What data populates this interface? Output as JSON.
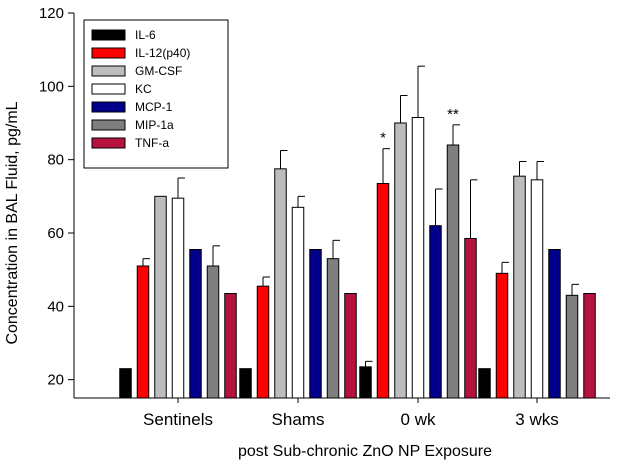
{
  "chart_data": {
    "type": "bar",
    "title": "",
    "xlabel": "post Sub-chronic ZnO NP Exposure",
    "ylabel": "Concentration in BAL Fluid, pg/mL",
    "ylim": [
      15,
      120
    ],
    "yticks": [
      20,
      40,
      60,
      80,
      100,
      120
    ],
    "grid": false,
    "legend_position": "top-left",
    "categories": [
      "Sentinels",
      "Shams",
      "0 wk",
      "3 wks"
    ],
    "series": [
      {
        "name": "IL-6",
        "color": "#000000",
        "values": [
          23,
          23,
          23.5,
          23
        ],
        "errors": [
          0,
          0,
          1.5,
          0
        ]
      },
      {
        "name": "IL-12(p40)",
        "color": "#ff0000",
        "values": [
          51,
          45.5,
          73.5,
          49
        ],
        "errors": [
          2,
          2.5,
          9.5,
          3
        ]
      },
      {
        "name": "GM-CSF",
        "color": "#bdbdbd",
        "values": [
          70,
          77.5,
          90,
          75.5
        ],
        "errors": [
          0,
          5,
          7.5,
          4
        ]
      },
      {
        "name": "KC",
        "color": "#ffffff",
        "values": [
          69.5,
          67,
          91.5,
          74.5
        ],
        "errors": [
          5.5,
          3,
          14,
          5
        ]
      },
      {
        "name": "MCP-1",
        "color": "#00008b",
        "values": [
          55.5,
          55.5,
          62,
          55.5
        ],
        "errors": [
          0,
          0,
          10,
          0
        ]
      },
      {
        "name": "MIP-1a",
        "color": "#7f7f7f",
        "values": [
          51,
          53,
          84,
          43
        ],
        "errors": [
          5.5,
          5,
          5.5,
          3
        ]
      },
      {
        "name": "TNF-a",
        "color": "#b5123e",
        "values": [
          43.5,
          43.5,
          58.5,
          43.5
        ],
        "errors": [
          0,
          0,
          16,
          0
        ]
      }
    ],
    "annotations": [
      {
        "text": "*",
        "category": "0 wk",
        "series": "IL-12(p40)"
      },
      {
        "text": "**",
        "category": "0 wk",
        "series": "MIP-1a"
      }
    ]
  }
}
